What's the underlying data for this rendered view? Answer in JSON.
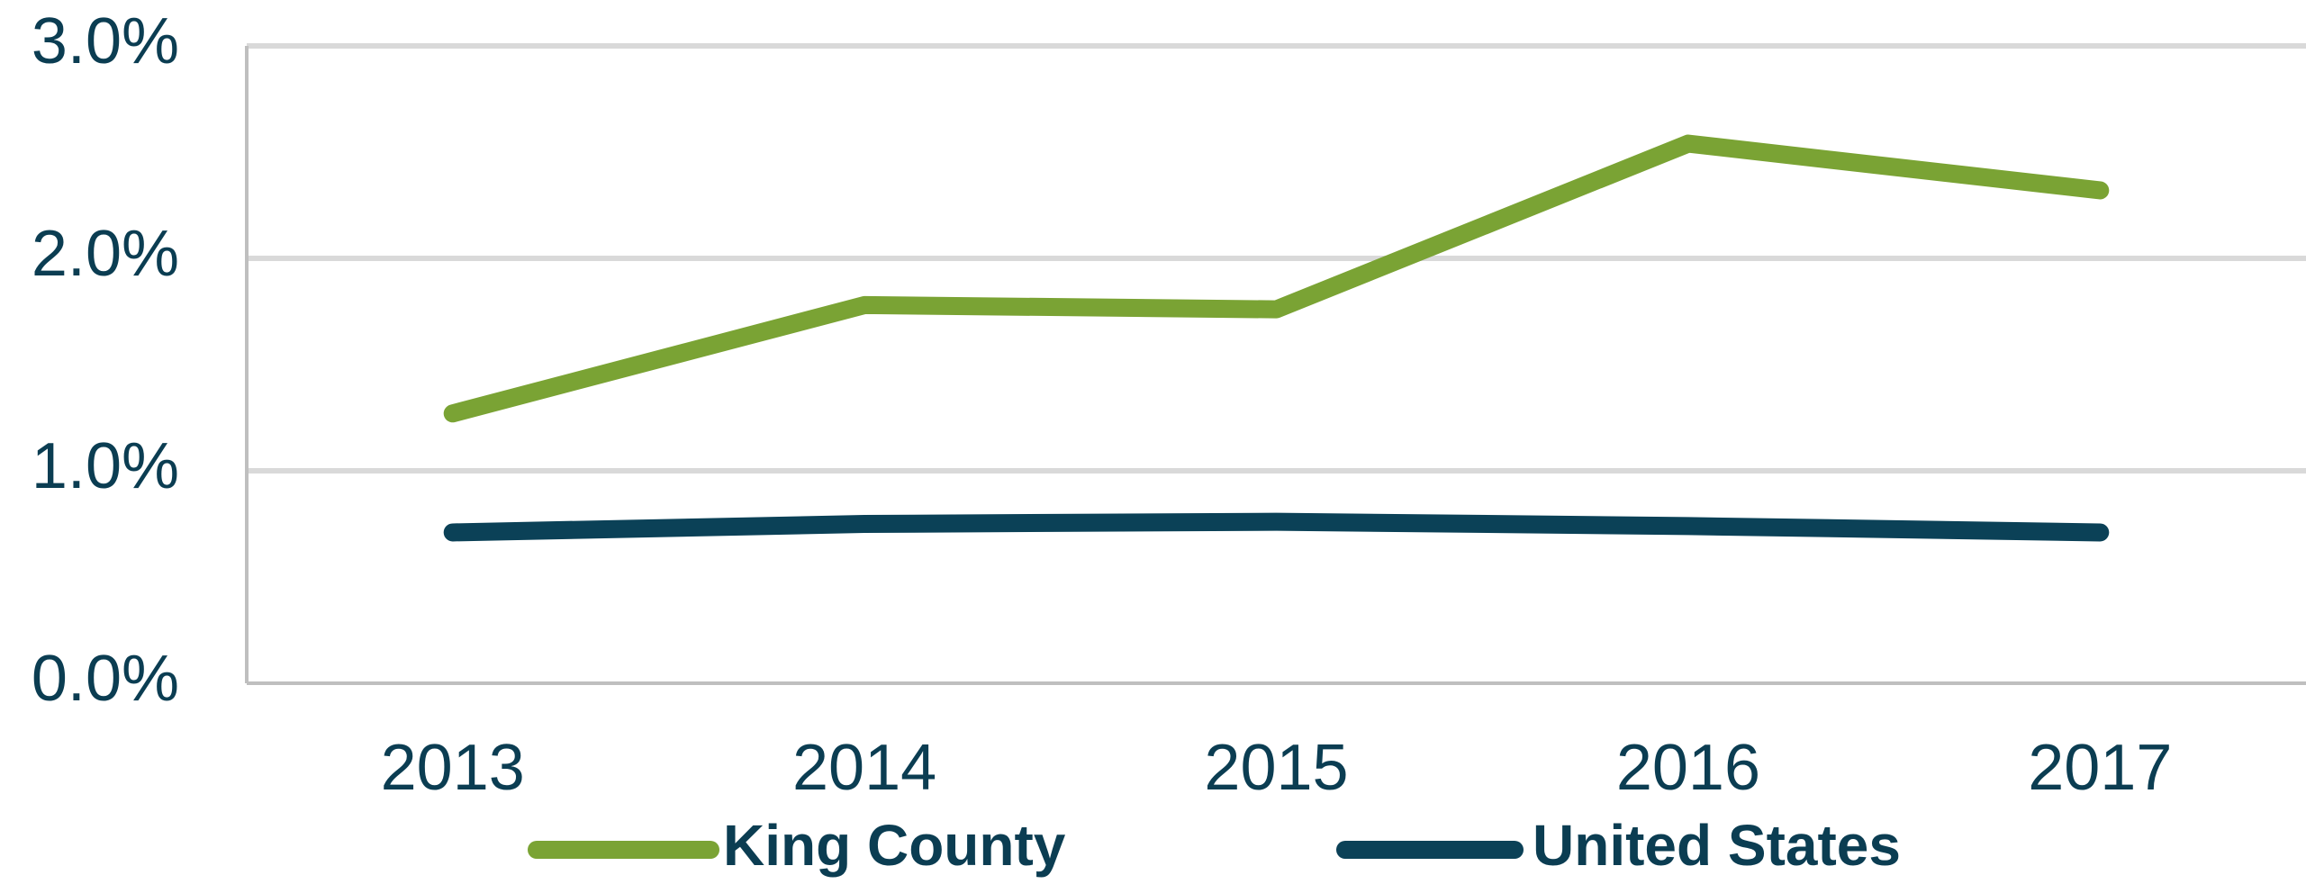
{
  "chart_data": {
    "type": "line",
    "categories": [
      "2013",
      "2014",
      "2015",
      "2016",
      "2017"
    ],
    "series": [
      {
        "name": "King County",
        "color": "#7aa334",
        "values": [
          1.27,
          1.78,
          1.76,
          2.54,
          2.32
        ]
      },
      {
        "name": "United States",
        "color": "#0b4157",
        "values": [
          0.71,
          0.75,
          0.76,
          0.74,
          0.71
        ]
      }
    ],
    "ylim": [
      0,
      3
    ],
    "yticks": [
      {
        "value": 0,
        "label": "0.0%"
      },
      {
        "value": 1,
        "label": "1.0%"
      },
      {
        "value": 2,
        "label": "2.0%"
      },
      {
        "value": 3,
        "label": "3.0%"
      }
    ],
    "grid": true,
    "legend": "bottom"
  }
}
